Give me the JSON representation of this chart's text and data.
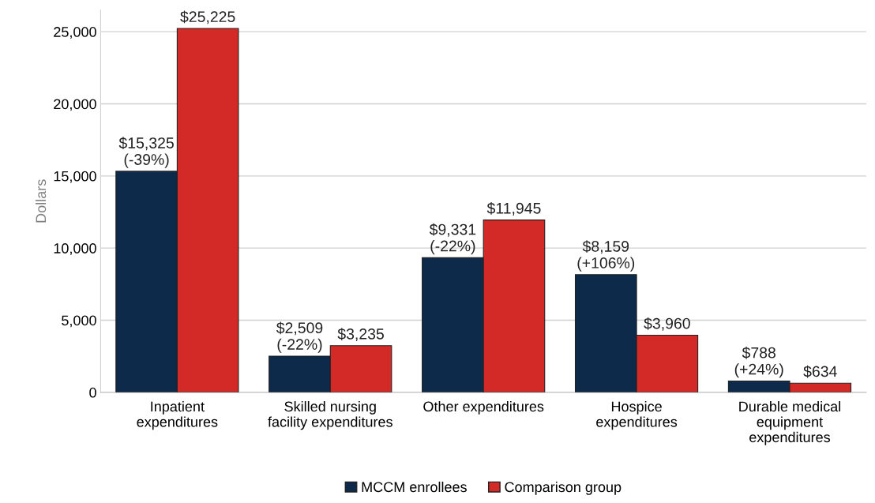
{
  "chart_data": {
    "type": "bar",
    "ylabel": "Dollars",
    "categories": [
      "Inpatient\nexpenditures",
      "Skilled nursing\nfacility expenditures",
      "Other expenditures",
      "Hospice\nexpenditures",
      "Durable medical\nequipment\nexpenditures"
    ],
    "series": [
      {
        "name": "MCCM enrollees",
        "color": "#0d2a4a",
        "values": [
          15325,
          2509,
          9331,
          8159,
          788
        ],
        "value_labels": [
          "$15,325\n(-39%)",
          "$2,509\n(-22%)",
          "$9,331\n(-22%)",
          "$8,159\n(+106%)",
          "$788\n(+24%)"
        ]
      },
      {
        "name": "Comparison group",
        "color": "#d42a27",
        "values": [
          25225,
          3235,
          11945,
          3960,
          634
        ],
        "value_labels": [
          "$25,225",
          "$3,235",
          "$11,945",
          "$3,960",
          "$634"
        ]
      }
    ],
    "ylim": [
      0,
      26500
    ],
    "yticks": [
      {
        "value": 0,
        "label": "0"
      },
      {
        "value": 5000,
        "label": "5,000"
      },
      {
        "value": 10000,
        "label": "10,000"
      },
      {
        "value": 15000,
        "label": "15,000"
      },
      {
        "value": 20000,
        "label": "20,000"
      },
      {
        "value": 25000,
        "label": "25,000"
      }
    ],
    "grid": "y",
    "legend": "bottom"
  }
}
